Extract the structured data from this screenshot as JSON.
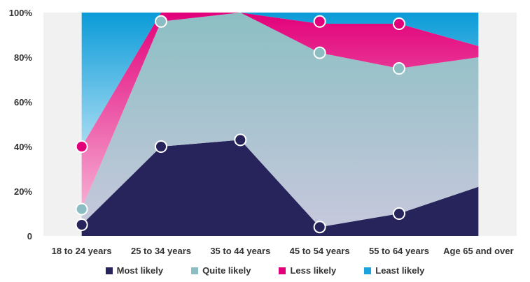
{
  "chart_data": {
    "type": "area",
    "categories": [
      "18 to 24 years",
      "25 to 34 years",
      "35 to 44 years",
      "45 to 54 years",
      "55 to 64 years",
      "Age 65 and over"
    ],
    "y_ticks": [
      "0",
      "20%",
      "40%",
      "60%",
      "80%",
      "100%"
    ],
    "ylim": [
      0,
      100
    ],
    "stacked": true,
    "series": [
      {
        "name": "Most likely",
        "color": "#27235b",
        "values": [
          5,
          40,
          43,
          4,
          10,
          22
        ]
      },
      {
        "name": "Quite likely",
        "color": "#8bbdc2",
        "values": [
          7,
          56,
          57,
          78,
          65,
          58
        ]
      },
      {
        "name": "Less likely",
        "color": "#e2007a",
        "values": [
          28,
          4,
          0,
          13,
          20,
          5
        ]
      },
      {
        "name": "Least likely",
        "color": "#1aa3dc",
        "values": [
          60,
          0,
          0,
          5,
          5,
          15
        ]
      }
    ],
    "markers": [
      {
        "series": "Most likely",
        "points": [
          [
            0,
            5
          ],
          [
            1,
            40
          ],
          [
            2,
            43
          ],
          [
            3,
            4
          ],
          [
            4,
            10
          ]
        ]
      },
      {
        "series": "Quite likely",
        "points": [
          [
            0,
            12
          ],
          [
            1,
            96
          ],
          [
            3,
            82
          ],
          [
            4,
            75
          ]
        ]
      },
      {
        "series": "Less likely",
        "points": [
          [
            0,
            40
          ],
          [
            3,
            96
          ],
          [
            4,
            95
          ]
        ]
      }
    ],
    "grid": "vertical-bands",
    "legend_position": "bottom"
  }
}
